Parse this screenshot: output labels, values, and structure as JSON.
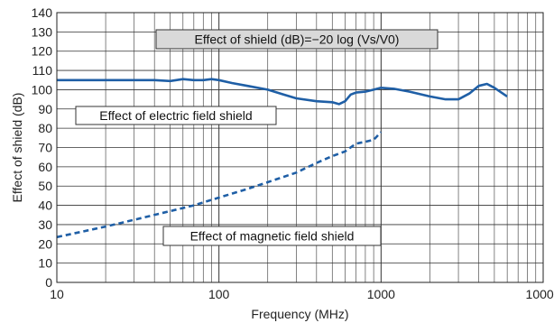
{
  "chart_data": {
    "type": "line",
    "xlabel": "Frequency (MHz)",
    "ylabel": "Effect of shield (dB)",
    "x_scale": "log",
    "xlim": [
      10,
      10000
    ],
    "ylim": [
      0,
      140
    ],
    "grid": true,
    "x_ticks": [
      10,
      100,
      1000,
      10000
    ],
    "x_tick_labels": [
      "10",
      "100",
      "1000",
      "10000"
    ],
    "y_ticks": [
      0,
      10,
      20,
      30,
      40,
      50,
      60,
      70,
      80,
      90,
      100,
      110,
      120,
      130,
      140
    ],
    "y_tick_labels": [
      "0",
      "10",
      "20",
      "30",
      "40",
      "50",
      "60",
      "70",
      "80",
      "90",
      "100",
      "110",
      "120",
      "130",
      "140"
    ],
    "series": [
      {
        "style": "solid",
        "color": "#1f5fa6",
        "x": [
          10,
          20,
          30,
          40,
          50,
          60,
          70,
          80,
          90,
          100,
          120,
          150,
          200,
          250,
          300,
          400,
          500,
          550,
          600,
          650,
          700,
          800,
          900,
          1000,
          1200,
          1500,
          2000,
          2500,
          3000,
          3500,
          4000,
          4500,
          5000,
          6000
        ],
        "y": [
          105,
          105,
          105,
          105,
          104.5,
          105.5,
          105,
          105,
          105.5,
          105,
          103.5,
          102,
          100,
          97.5,
          95.5,
          94,
          93.5,
          92.5,
          94,
          97.5,
          98.5,
          99,
          100,
          101,
          100.5,
          99,
          96.5,
          95,
          95,
          98,
          102,
          103,
          101,
          96.5
        ]
      },
      {
        "style": "dashed",
        "color": "#1f5fa6",
        "x": [
          10,
          20,
          30,
          50,
          70,
          100,
          150,
          200,
          300,
          400,
          500,
          600,
          700,
          800,
          900,
          1000
        ],
        "y": [
          23.5,
          29,
          32.5,
          37,
          40,
          44,
          48.5,
          52,
          57,
          62,
          65.5,
          68,
          72,
          73,
          74,
          78
        ]
      }
    ],
    "annotations": [
      {
        "text": "Effect of shield (dB)=−20 log (Vs/V0)",
        "shaded": true
      },
      {
        "text": "Effect of electric field shield",
        "shaded": false
      },
      {
        "text": "Effect of magnetic field shield",
        "shaded": false
      }
    ]
  }
}
